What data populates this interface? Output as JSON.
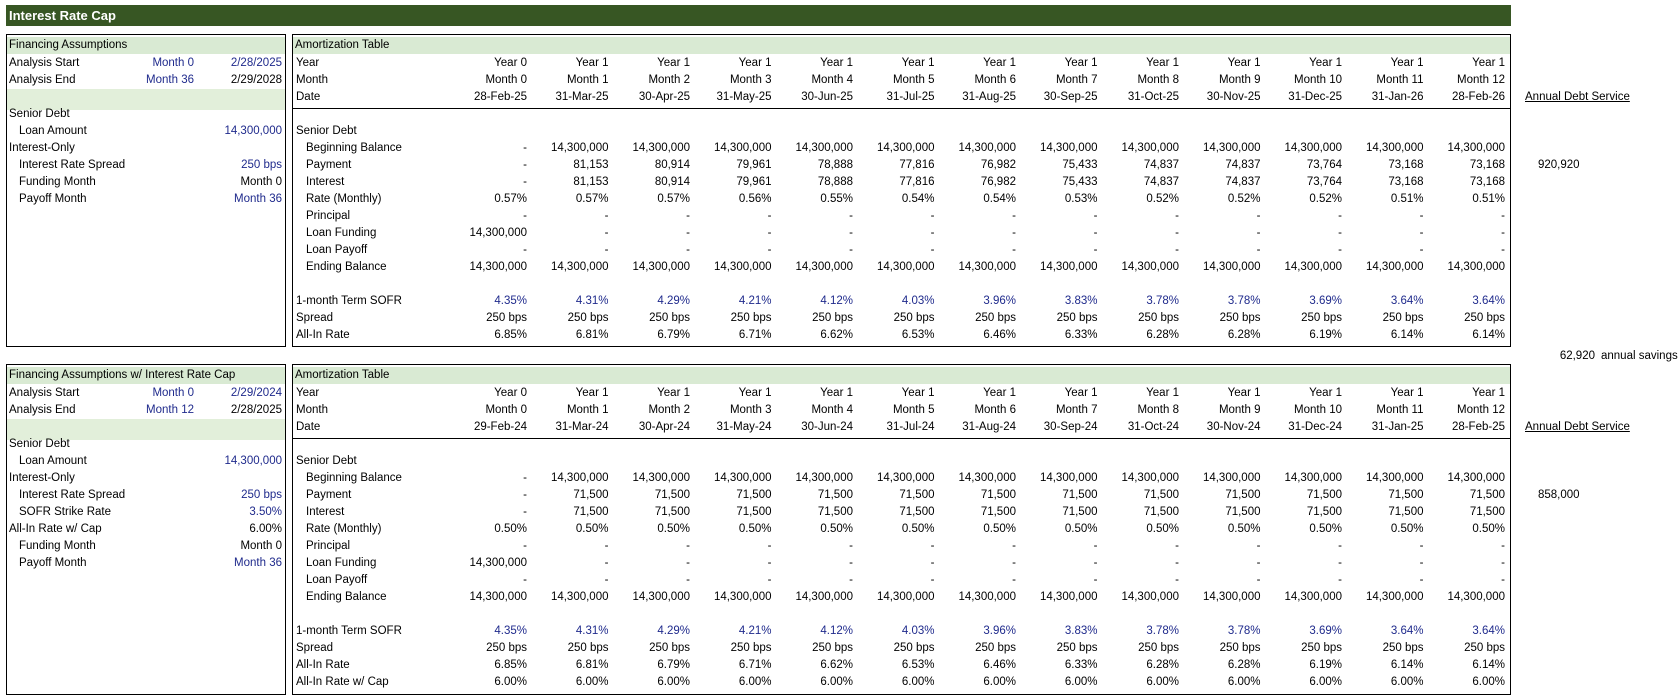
{
  "title": "Interest Rate Cap",
  "section1": {
    "assump": {
      "header": "Financing Assumptions",
      "rows": [
        {
          "label": "Analysis Start",
          "mid": "Month 0",
          "val": "2/28/2025",
          "indent": 0,
          "midBlue": true,
          "valBlue": true
        },
        {
          "label": "Analysis End",
          "mid": "Month 36",
          "val": "2/29/2028",
          "indent": 0,
          "midBlue": true,
          "valBlue": false
        },
        {
          "label": "",
          "mid": "",
          "val": "",
          "indent": 0
        },
        {
          "label": "Senior Debt",
          "mid": "",
          "val": "",
          "indent": 0
        },
        {
          "label": "Loan Amount",
          "mid": "",
          "val": "14,300,000",
          "indent": 1,
          "valBlue": true
        },
        {
          "label": "Interest-Only",
          "mid": "",
          "val": "",
          "indent": 0
        },
        {
          "label": "Interest Rate Spread",
          "mid": "",
          "val": "250 bps",
          "indent": 1,
          "valBlue": true
        },
        {
          "label": "Funding Month",
          "mid": "",
          "val": "Month 0",
          "indent": 1,
          "valBlue": false
        },
        {
          "label": "Payoff Month",
          "mid": "",
          "val": "Month 36",
          "indent": 1,
          "valBlue": true
        }
      ]
    },
    "amort": {
      "header": "Amortization Table",
      "years": [
        "Year 0",
        "Year 1",
        "Year 1",
        "Year 1",
        "Year 1",
        "Year 1",
        "Year 1",
        "Year 1",
        "Year 1",
        "Year 1",
        "Year 1",
        "Year 1",
        "Year 1"
      ],
      "months": [
        "Month 0",
        "Month 1",
        "Month 2",
        "Month 3",
        "Month 4",
        "Month 5",
        "Month 6",
        "Month 7",
        "Month 8",
        "Month 9",
        "Month 10",
        "Month 11",
        "Month 12"
      ],
      "dates": [
        "28-Feb-25",
        "31-Mar-25",
        "30-Apr-25",
        "31-May-25",
        "30-Jun-25",
        "31-Jul-25",
        "31-Aug-25",
        "30-Sep-25",
        "31-Oct-25",
        "30-Nov-25",
        "31-Dec-25",
        "31-Jan-26",
        "28-Feb-26"
      ],
      "rowLabels": [
        "Year",
        "Month",
        "Date"
      ],
      "debtService": {
        "label": "Annual Debt Service",
        "value": "920,920"
      },
      "rows": [
        {
          "label": "Senior Debt",
          "indent": 0,
          "vals": []
        },
        {
          "label": "Beginning Balance",
          "indent": 1,
          "vals": [
            "-",
            "14,300,000",
            "14,300,000",
            "14,300,000",
            "14,300,000",
            "14,300,000",
            "14,300,000",
            "14,300,000",
            "14,300,000",
            "14,300,000",
            "14,300,000",
            "14,300,000",
            "14,300,000"
          ]
        },
        {
          "label": "Payment",
          "indent": 1,
          "vals": [
            "-",
            "81,153",
            "80,914",
            "79,961",
            "78,888",
            "77,816",
            "76,982",
            "75,433",
            "74,837",
            "74,837",
            "73,764",
            "73,168",
            "73,168"
          ]
        },
        {
          "label": "Interest",
          "indent": 1,
          "vals": [
            "-",
            "81,153",
            "80,914",
            "79,961",
            "78,888",
            "77,816",
            "76,982",
            "75,433",
            "74,837",
            "74,837",
            "73,764",
            "73,168",
            "73,168"
          ]
        },
        {
          "label": "Rate (Monthly)",
          "indent": 1,
          "vals": [
            "0.57%",
            "0.57%",
            "0.57%",
            "0.56%",
            "0.55%",
            "0.54%",
            "0.54%",
            "0.53%",
            "0.52%",
            "0.52%",
            "0.52%",
            "0.51%",
            "0.51%"
          ]
        },
        {
          "label": "Principal",
          "indent": 1,
          "vals": [
            "-",
            "-",
            "-",
            "-",
            "-",
            "-",
            "-",
            "-",
            "-",
            "-",
            "-",
            "-",
            "-"
          ]
        },
        {
          "label": "Loan Funding",
          "indent": 1,
          "vals": [
            "14,300,000",
            "-",
            "-",
            "-",
            "-",
            "-",
            "-",
            "-",
            "-",
            "-",
            "-",
            "-",
            "-"
          ]
        },
        {
          "label": "Loan Payoff",
          "indent": 1,
          "vals": [
            "-",
            "-",
            "-",
            "-",
            "-",
            "-",
            "-",
            "-",
            "-",
            "-",
            "-",
            "-",
            "-"
          ]
        },
        {
          "label": "Ending Balance",
          "indent": 1,
          "vals": [
            "14,300,000",
            "14,300,000",
            "14,300,000",
            "14,300,000",
            "14,300,000",
            "14,300,000",
            "14,300,000",
            "14,300,000",
            "14,300,000",
            "14,300,000",
            "14,300,000",
            "14,300,000",
            "14,300,000"
          ]
        },
        {
          "label": "",
          "indent": 0,
          "vals": []
        },
        {
          "label": "1-month Term SOFR",
          "indent": 0,
          "blue": true,
          "vals": [
            "4.35%",
            "4.31%",
            "4.29%",
            "4.21%",
            "4.12%",
            "4.03%",
            "3.96%",
            "3.83%",
            "3.78%",
            "3.78%",
            "3.69%",
            "3.64%",
            "3.64%"
          ]
        },
        {
          "label": "Spread",
          "indent": 0,
          "vals": [
            "250 bps",
            "250 bps",
            "250 bps",
            "250 bps",
            "250 bps",
            "250 bps",
            "250 bps",
            "250 bps",
            "250 bps",
            "250 bps",
            "250 bps",
            "250 bps",
            "250 bps"
          ]
        },
        {
          "label": "All-In Rate",
          "indent": 0,
          "vals": [
            "6.85%",
            "6.81%",
            "6.79%",
            "6.71%",
            "6.62%",
            "6.53%",
            "6.46%",
            "6.33%",
            "6.28%",
            "6.28%",
            "6.19%",
            "6.14%",
            "6.14%"
          ]
        }
      ]
    }
  },
  "savings": {
    "value": "62,920",
    "label": "annual savings"
  },
  "section2": {
    "assump": {
      "header": "Financing Assumptions w/ Interest Rate Cap",
      "rows": [
        {
          "label": "Analysis Start",
          "mid": "Month 0",
          "val": "2/29/2024",
          "indent": 0,
          "midBlue": true,
          "valBlue": true
        },
        {
          "label": "Analysis End",
          "mid": "Month 12",
          "val": "2/28/2025",
          "indent": 0,
          "midBlue": true,
          "valBlue": false
        },
        {
          "label": "",
          "mid": "",
          "val": "",
          "indent": 0
        },
        {
          "label": "Senior Debt",
          "mid": "",
          "val": "",
          "indent": 0
        },
        {
          "label": "Loan Amount",
          "mid": "",
          "val": "14,300,000",
          "indent": 1,
          "valBlue": true
        },
        {
          "label": "Interest-Only",
          "mid": "",
          "val": "",
          "indent": 0
        },
        {
          "label": "Interest Rate Spread",
          "mid": "",
          "val": "250 bps",
          "indent": 1,
          "valBlue": true
        },
        {
          "label": "SOFR Strike Rate",
          "mid": "",
          "val": "3.50%",
          "indent": 1,
          "valBlue": true
        },
        {
          "label": "All-In Rate w/ Cap",
          "mid": "",
          "val": "6.00%",
          "indent": 0,
          "valBlue": false
        },
        {
          "label": "Funding Month",
          "mid": "",
          "val": "Month 0",
          "indent": 1,
          "valBlue": false
        },
        {
          "label": "Payoff Month",
          "mid": "",
          "val": "Month 36",
          "indent": 1,
          "valBlue": true
        }
      ]
    },
    "amort": {
      "header": "Amortization Table",
      "years": [
        "Year 0",
        "Year 1",
        "Year 1",
        "Year 1",
        "Year 1",
        "Year 1",
        "Year 1",
        "Year 1",
        "Year 1",
        "Year 1",
        "Year 1",
        "Year 1",
        "Year 1"
      ],
      "months": [
        "Month 0",
        "Month 1",
        "Month 2",
        "Month 3",
        "Month 4",
        "Month 5",
        "Month 6",
        "Month 7",
        "Month 8",
        "Month 9",
        "Month 10",
        "Month 11",
        "Month 12"
      ],
      "dates": [
        "29-Feb-24",
        "31-Mar-24",
        "30-Apr-24",
        "31-May-24",
        "30-Jun-24",
        "31-Jul-24",
        "31-Aug-24",
        "30-Sep-24",
        "31-Oct-24",
        "30-Nov-24",
        "31-Dec-24",
        "31-Jan-25",
        "28-Feb-25"
      ],
      "rowLabels": [
        "Year",
        "Month",
        "Date"
      ],
      "debtService": {
        "label": "Annual Debt Service",
        "value": "858,000"
      },
      "rows": [
        {
          "label": "Senior Debt",
          "indent": 0,
          "vals": []
        },
        {
          "label": "Beginning Balance",
          "indent": 1,
          "vals": [
            "-",
            "14,300,000",
            "14,300,000",
            "14,300,000",
            "14,300,000",
            "14,300,000",
            "14,300,000",
            "14,300,000",
            "14,300,000",
            "14,300,000",
            "14,300,000",
            "14,300,000",
            "14,300,000"
          ]
        },
        {
          "label": "Payment",
          "indent": 1,
          "vals": [
            "-",
            "71,500",
            "71,500",
            "71,500",
            "71,500",
            "71,500",
            "71,500",
            "71,500",
            "71,500",
            "71,500",
            "71,500",
            "71,500",
            "71,500"
          ]
        },
        {
          "label": "Interest",
          "indent": 1,
          "vals": [
            "-",
            "71,500",
            "71,500",
            "71,500",
            "71,500",
            "71,500",
            "71,500",
            "71,500",
            "71,500",
            "71,500",
            "71,500",
            "71,500",
            "71,500"
          ]
        },
        {
          "label": "Rate (Monthly)",
          "indent": 1,
          "vals": [
            "0.50%",
            "0.50%",
            "0.50%",
            "0.50%",
            "0.50%",
            "0.50%",
            "0.50%",
            "0.50%",
            "0.50%",
            "0.50%",
            "0.50%",
            "0.50%",
            "0.50%"
          ]
        },
        {
          "label": "Principal",
          "indent": 1,
          "vals": [
            "-",
            "-",
            "-",
            "-",
            "-",
            "-",
            "-",
            "-",
            "-",
            "-",
            "-",
            "-",
            "-"
          ]
        },
        {
          "label": "Loan Funding",
          "indent": 1,
          "vals": [
            "14,300,000",
            "-",
            "-",
            "-",
            "-",
            "-",
            "-",
            "-",
            "-",
            "-",
            "-",
            "-",
            "-"
          ]
        },
        {
          "label": "Loan Payoff",
          "indent": 1,
          "vals": [
            "-",
            "-",
            "-",
            "-",
            "-",
            "-",
            "-",
            "-",
            "-",
            "-",
            "-",
            "-",
            "-"
          ]
        },
        {
          "label": "Ending Balance",
          "indent": 1,
          "vals": [
            "14,300,000",
            "14,300,000",
            "14,300,000",
            "14,300,000",
            "14,300,000",
            "14,300,000",
            "14,300,000",
            "14,300,000",
            "14,300,000",
            "14,300,000",
            "14,300,000",
            "14,300,000",
            "14,300,000"
          ]
        },
        {
          "label": "",
          "indent": 0,
          "vals": []
        },
        {
          "label": "1-month Term SOFR",
          "indent": 0,
          "blue": true,
          "vals": [
            "4.35%",
            "4.31%",
            "4.29%",
            "4.21%",
            "4.12%",
            "4.03%",
            "3.96%",
            "3.83%",
            "3.78%",
            "3.78%",
            "3.69%",
            "3.64%",
            "3.64%"
          ]
        },
        {
          "label": "Spread",
          "indent": 0,
          "vals": [
            "250 bps",
            "250 bps",
            "250 bps",
            "250 bps",
            "250 bps",
            "250 bps",
            "250 bps",
            "250 bps",
            "250 bps",
            "250 bps",
            "250 bps",
            "250 bps",
            "250 bps"
          ]
        },
        {
          "label": "All-In Rate",
          "indent": 0,
          "vals": [
            "6.85%",
            "6.81%",
            "6.79%",
            "6.71%",
            "6.62%",
            "6.53%",
            "6.46%",
            "6.33%",
            "6.28%",
            "6.28%",
            "6.19%",
            "6.14%",
            "6.14%"
          ]
        },
        {
          "label": "All-In Rate w/ Cap",
          "indent": 0,
          "vals": [
            "6.00%",
            "6.00%",
            "6.00%",
            "6.00%",
            "6.00%",
            "6.00%",
            "6.00%",
            "6.00%",
            "6.00%",
            "6.00%",
            "6.00%",
            "6.00%",
            "6.00%"
          ]
        }
      ]
    }
  }
}
